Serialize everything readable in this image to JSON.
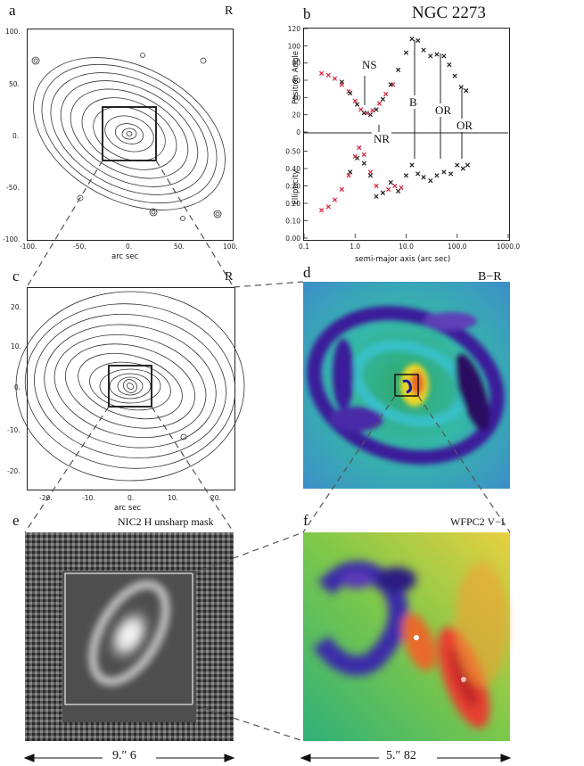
{
  "figure": {
    "panels": {
      "a": {
        "label": "a",
        "band": "R",
        "xlabel": "arc sec",
        "xticks": [
          "-100.",
          "-50.",
          "0.",
          "50.",
          "100."
        ],
        "yticks": [
          "100.",
          "50.",
          "0.",
          "-50.",
          "-100."
        ]
      },
      "b": {
        "label": "b",
        "title": "NGC 2273",
        "ylabel_top": "Position Angle",
        "ylabel_bottom": "Ellipticity",
        "xlabel": "semi-major axis (arc sec)",
        "xticks": [
          "0.1",
          "1.0",
          "10.0",
          "100.0",
          "1000.0"
        ],
        "yticks_top": [
          "120",
          "100",
          "80",
          "60",
          "40",
          "20",
          "0"
        ],
        "yticks_bottom": [
          "0.50",
          "0.40",
          "0.30",
          "0.20",
          "0.10",
          "0.00"
        ],
        "annotations": [
          "NS",
          "NR",
          "B",
          "OR",
          "OR"
        ]
      },
      "c": {
        "label": "c",
        "band": "R",
        "xlabel": "arc sec",
        "xticks": [
          "-20.",
          "-10.",
          "0.",
          "10.",
          "20."
        ],
        "yticks": [
          "20.",
          "10.",
          "0.",
          "-10.",
          "-20."
        ]
      },
      "d": {
        "label": "d",
        "band": "B−R"
      },
      "e": {
        "label": "e",
        "band": "NIC2 H unsharp mask",
        "scale": "9.″ 6"
      },
      "f": {
        "label": "f",
        "band": "WFPC2 V−I",
        "scale": "5.″ 82"
      }
    }
  },
  "chart_data": {
    "type": "scatter",
    "title": "NGC 2273",
    "xlabel": "semi-major axis (arc sec)",
    "xscale": "log",
    "xlim": [
      0.1,
      1000.0
    ],
    "panels": [
      {
        "ylabel": "Position Angle",
        "ylim": [
          0,
          120
        ],
        "series": [
          {
            "color": "#d8203c",
            "x": [
              0.22,
              0.3,
              0.4,
              0.55,
              0.75,
              1.0,
              1.3,
              1.7,
              2.2,
              3.0,
              4.0,
              5.5
            ],
            "y": [
              68,
              66,
              62,
              55,
              47,
              36,
              26,
              22,
              25,
              33,
              44,
              55
            ]
          },
          {
            "color": "#222222",
            "x": [
              0.55,
              0.8,
              1.1,
              1.5,
              2.0,
              2.6,
              3.5,
              5.0,
              7.0,
              10.0,
              13.0,
              17.0,
              22.0,
              30.0,
              40.0,
              55.0,
              70.0,
              90.0,
              120.0,
              150.0
            ],
            "y": [
              58,
              45,
              32,
              22,
              20,
              26,
              38,
              55,
              72,
              92,
              108,
              106,
              95,
              88,
              90,
              88,
              78,
              65,
              52,
              48
            ]
          }
        ]
      },
      {
        "ylabel": "Ellipticity",
        "ylim": [
          0,
          0.6
        ],
        "series": [
          {
            "color": "#d8203c",
            "x": [
              0.22,
              0.3,
              0.4,
              0.55,
              0.75,
              1.0,
              1.2,
              1.5,
              2.0,
              2.6,
              3.5,
              4.5,
              6.0,
              8.0
            ],
            "y": [
              0.16,
              0.18,
              0.22,
              0.28,
              0.36,
              0.47,
              0.52,
              0.48,
              0.38,
              0.3,
              0.26,
              0.28,
              0.3,
              0.29
            ]
          },
          {
            "color": "#222222",
            "x": [
              0.8,
              1.1,
              1.5,
              2.0,
              2.6,
              3.5,
              5.0,
              7.0,
              10.0,
              13.0,
              17.0,
              22.0,
              30.0,
              40.0,
              55.0,
              75.0,
              100.0,
              130.0,
              160.0
            ],
            "y": [
              0.38,
              0.46,
              0.43,
              0.36,
              0.24,
              0.26,
              0.32,
              0.27,
              0.36,
              0.42,
              0.37,
              0.35,
              0.33,
              0.36,
              0.38,
              0.37,
              0.42,
              0.4,
              0.42
            ]
          }
        ]
      }
    ]
  }
}
